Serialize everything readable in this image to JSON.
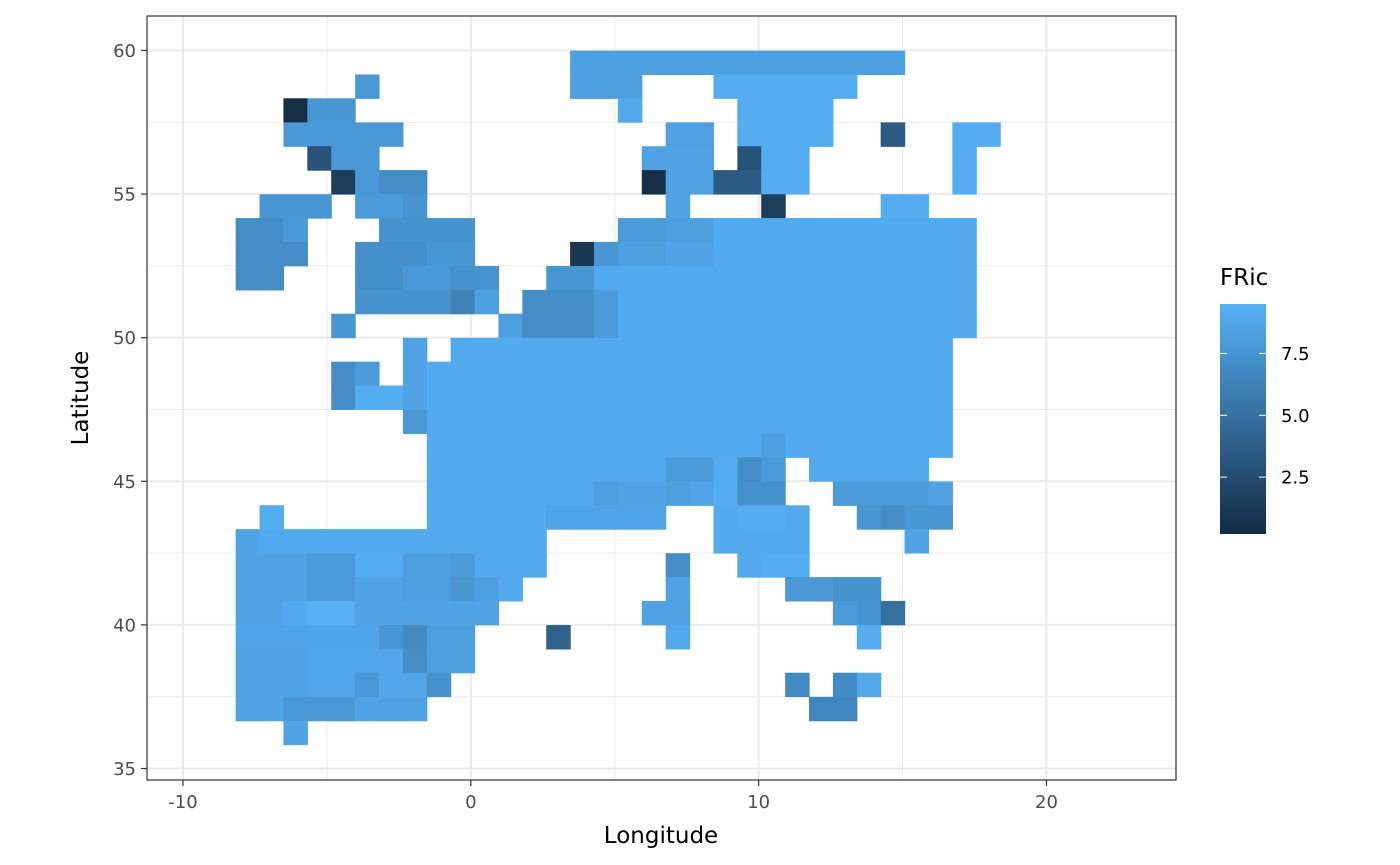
{
  "chart_data": {
    "type": "heatmap",
    "xlabel": "Longitude",
    "ylabel": "Latitude",
    "xlim": [
      -11.25,
      24.5
    ],
    "ylim": [
      34.6,
      61.2
    ],
    "xticks": [
      -10,
      0,
      10,
      20
    ],
    "yticks": [
      35,
      40,
      45,
      50,
      55,
      60
    ],
    "xtick_labels": [
      "-10",
      "0",
      "10",
      "20"
    ],
    "ytick_labels": [
      "35",
      "40",
      "45",
      "50",
      "55",
      "60"
    ],
    "grid": true,
    "legend": {
      "title": "FRic",
      "position": "right",
      "ticks": [
        2.5,
        5.0,
        7.5
      ],
      "tick_labels": [
        "2.5",
        "5.0",
        "7.5"
      ],
      "range": [
        0.2,
        9.5
      ],
      "low_color": "#132B43",
      "high_color": "#56B1F7"
    },
    "cell_size": 0.83,
    "lon0": -9.33,
    "lat0": 59.58,
    "default_value": 9.0,
    "rows": [
      {
        "lat": 59.58,
        "ranges": [
          [
            5.5,
            18.5,
            8.3
          ]
        ]
      },
      {
        "lat": 58.75,
        "ranges": [
          [
            -3.5,
            -3.5,
            7.8
          ],
          [
            5.5,
            7.5,
            8.3
          ],
          [
            11.5,
            16.5,
            9.2
          ]
        ]
      },
      {
        "lat": 57.92,
        "ranges": [
          [
            -6.5,
            -6.5,
            0.5
          ],
          [
            -5.5,
            -4.5,
            7.6
          ],
          [
            7.5,
            7.5,
            9.0
          ],
          [
            12.5,
            15.5,
            9.2
          ]
        ]
      },
      {
        "lat": 57.08,
        "ranges": [
          [
            -6.5,
            -2.5,
            7.8
          ],
          [
            9.5,
            10.5,
            8.4
          ],
          [
            12.5,
            15.5,
            9.2
          ],
          [
            18.5,
            18.5,
            3.5
          ],
          [
            21.5,
            22.5,
            9.2
          ]
        ]
      },
      {
        "lat": 56.25,
        "ranges": [
          [
            -5.5,
            -5.5,
            3.0
          ],
          [
            -4.5,
            -3.5,
            7.8
          ],
          [
            8.5,
            10.5,
            8.5
          ],
          [
            12.5,
            12.5,
            3.0
          ],
          [
            13.5,
            14.5,
            9.2
          ],
          [
            21.5,
            21.5,
            9.2
          ]
        ]
      },
      {
        "lat": 55.42,
        "ranges": [
          [
            -4.5,
            -4.5,
            1.5
          ],
          [
            -3.5,
            -3.5,
            7.8
          ],
          [
            -2.5,
            -1.5,
            7.0
          ],
          [
            8.5,
            8.5,
            0.5
          ],
          [
            9.5,
            10.5,
            8.5
          ],
          [
            11.5,
            12.5,
            3.5
          ],
          [
            13.5,
            14.5,
            9.2
          ],
          [
            21.5,
            21.5,
            9.2
          ]
        ]
      },
      {
        "lat": 54.58,
        "ranges": [
          [
            -7.5,
            -5.5,
            7.6
          ],
          [
            -3.5,
            -2.5,
            8.0
          ],
          [
            -1.5,
            -1.5,
            7.5
          ],
          [
            9.5,
            9.5,
            8.5
          ],
          [
            13.5,
            13.5,
            1.5
          ],
          [
            18.5,
            19.5,
            9.2
          ]
        ]
      },
      {
        "lat": 53.75,
        "ranges": [
          [
            -8.5,
            -7.5,
            7.0
          ],
          [
            -6.5,
            -6.5,
            7.8
          ],
          [
            -2.5,
            0.5,
            7.4
          ],
          [
            7.5,
            8.5,
            8.0
          ],
          [
            9.5,
            10.5,
            8.3
          ],
          [
            11.5,
            21.5,
            9.1
          ]
        ]
      },
      {
        "lat": 52.92,
        "ranges": [
          [
            -8.5,
            -6.5,
            7.0
          ],
          [
            -3.5,
            -1.5,
            7.2
          ],
          [
            -0.5,
            0.5,
            7.6
          ],
          [
            5.5,
            5.5,
            1.0
          ],
          [
            6.5,
            6.5,
            7.6
          ],
          [
            7.5,
            8.5,
            8.3
          ],
          [
            9.5,
            10.5,
            8.6
          ],
          [
            11.5,
            21.5,
            9.1
          ]
        ]
      },
      {
        "lat": 52.08,
        "ranges": [
          [
            -8.5,
            -7.5,
            7.0
          ],
          [
            -3.5,
            -2.5,
            7.2
          ],
          [
            -1.5,
            -0.5,
            7.8
          ],
          [
            0.5,
            0.5,
            7.4
          ],
          [
            1.5,
            1.5,
            7.5
          ],
          [
            4.5,
            5.5,
            7.6
          ],
          [
            6.5,
            21.5,
            9.1
          ]
        ]
      },
      {
        "lat": 51.25,
        "ranges": [
          [
            -3.5,
            -0.5,
            7.4
          ],
          [
            0.5,
            0.5,
            6.2
          ],
          [
            1.5,
            1.5,
            8.3
          ],
          [
            3.5,
            5.5,
            7.0
          ],
          [
            6.5,
            6.5,
            8.0
          ],
          [
            7.5,
            21.5,
            9.1
          ]
        ]
      },
      {
        "lat": 50.42,
        "ranges": [
          [
            -4.5,
            -4.5,
            7.6
          ],
          [
            2.5,
            2.5,
            8.3
          ],
          [
            3.5,
            5.5,
            7.0
          ],
          [
            6.5,
            6.5,
            8.0
          ],
          [
            7.5,
            21.5,
            9.1
          ]
        ]
      },
      {
        "lat": 49.58,
        "ranges": [
          [
            -1.5,
            -1.5,
            8.6
          ],
          [
            0.5,
            20.5,
            9.1
          ]
        ]
      },
      {
        "lat": 48.75,
        "ranges": [
          [
            -4.5,
            -4.5,
            7.0
          ],
          [
            -3.5,
            -3.5,
            8.0
          ],
          [
            -1.5,
            -1.5,
            8.6
          ],
          [
            -0.5,
            20.5,
            9.1
          ]
        ]
      },
      {
        "lat": 47.92,
        "ranges": [
          [
            -4.5,
            -4.5,
            7.0
          ],
          [
            -3.5,
            -2.5,
            9.2
          ],
          [
            -1.5,
            -1.5,
            8.6
          ],
          [
            -0.5,
            20.5,
            9.1
          ]
        ]
      },
      {
        "lat": 47.08,
        "ranges": [
          [
            -1.5,
            -1.5,
            7.8
          ],
          [
            -0.5,
            20.5,
            9.1
          ]
        ]
      },
      {
        "lat": 46.25,
        "ranges": [
          [
            -0.5,
            12.5,
            9.1
          ],
          [
            13.5,
            13.5,
            8.3
          ],
          [
            14.5,
            20.5,
            9.1
          ]
        ]
      },
      {
        "lat": 45.42,
        "ranges": [
          [
            -0.5,
            9.5,
            9.1
          ],
          [
            9.5,
            9.5,
            8.0
          ],
          [
            10.5,
            10.5,
            8.0
          ],
          [
            11.5,
            11.5,
            9.2
          ],
          [
            12.5,
            12.5,
            7.0
          ],
          [
            13.5,
            13.5,
            8.0
          ],
          [
            15.5,
            19.5,
            9.1
          ]
        ]
      },
      {
        "lat": 44.58,
        "ranges": [
          [
            -0.5,
            5.5,
            9.1
          ],
          [
            6.5,
            6.5,
            8.3
          ],
          [
            7.5,
            8.5,
            8.6
          ],
          [
            9.5,
            9.5,
            8.3
          ],
          [
            10.5,
            10.5,
            8.7
          ],
          [
            11.5,
            11.5,
            9.2
          ],
          [
            12.5,
            13.5,
            7.3
          ],
          [
            16.5,
            19.5,
            8.0
          ],
          [
            20.5,
            20.5,
            8.6
          ]
        ]
      },
      {
        "lat": 43.75,
        "ranges": [
          [
            -7.5,
            -7.5,
            9.2
          ],
          [
            -0.5,
            3.5,
            9.1
          ],
          [
            4.5,
            8.5,
            8.7
          ],
          [
            11.5,
            11.5,
            9.0
          ],
          [
            12.5,
            13.5,
            9.2
          ],
          [
            14.5,
            14.5,
            9.0
          ],
          [
            17.5,
            17.5,
            7.6
          ],
          [
            18.5,
            18.5,
            7.0
          ],
          [
            19.5,
            20.5,
            7.6
          ]
        ]
      },
      {
        "lat": 42.92,
        "ranges": [
          [
            -8.5,
            -8.5,
            8.6
          ],
          [
            -7.5,
            3.5,
            9.1
          ],
          [
            11.5,
            14.5,
            9.0
          ],
          [
            19.5,
            19.5,
            8.6
          ]
        ]
      },
      {
        "lat": 42.08,
        "ranges": [
          [
            -8.5,
            -6.5,
            8.6
          ],
          [
            -5.5,
            -4.5,
            8.0
          ],
          [
            -3.5,
            -2.5,
            9.2
          ],
          [
            -1.5,
            -0.5,
            8.3
          ],
          [
            0.5,
            0.5,
            8.0
          ],
          [
            1.5,
            3.5,
            9.1
          ],
          [
            9.5,
            9.5,
            7.0
          ],
          [
            12.5,
            12.5,
            9.0
          ],
          [
            13.5,
            14.5,
            9.2
          ]
        ]
      },
      {
        "lat": 41.25,
        "ranges": [
          [
            -8.5,
            -6.5,
            8.6
          ],
          [
            -5.5,
            -4.5,
            8.0
          ],
          [
            -3.5,
            -2.5,
            8.6
          ],
          [
            -1.5,
            -0.5,
            8.3
          ],
          [
            0.5,
            0.5,
            7.6
          ],
          [
            1.5,
            1.5,
            8.3
          ],
          [
            2.5,
            2.5,
            9.1
          ],
          [
            9.5,
            9.5,
            8.6
          ],
          [
            14.5,
            15.5,
            7.8
          ],
          [
            16.5,
            17.5,
            7.4
          ]
        ]
      },
      {
        "lat": 40.42,
        "ranges": [
          [
            -8.5,
            -7.5,
            8.6
          ],
          [
            -6.5,
            -6.5,
            9.1
          ],
          [
            -5.5,
            -4.5,
            9.4
          ],
          [
            -3.5,
            1.5,
            8.6
          ],
          [
            8.5,
            8.5,
            8.6
          ],
          [
            9.5,
            9.5,
            8.4
          ],
          [
            16.5,
            16.5,
            8.0
          ],
          [
            17.5,
            17.5,
            7.5
          ],
          [
            18.5,
            18.5,
            5.0
          ]
        ]
      },
      {
        "lat": 39.58,
        "ranges": [
          [
            -8.5,
            -3.5,
            8.7
          ],
          [
            -2.5,
            -2.5,
            7.6
          ],
          [
            -1.5,
            -1.5,
            6.8
          ],
          [
            -0.5,
            0.5,
            8.3
          ],
          [
            4.5,
            4.5,
            4.0
          ],
          [
            9.5,
            9.5,
            9.0
          ],
          [
            17.5,
            17.5,
            9.2
          ]
        ]
      },
      {
        "lat": 38.75,
        "ranges": [
          [
            -8.5,
            -6.5,
            8.6
          ],
          [
            -5.5,
            -2.5,
            8.8
          ],
          [
            -1.5,
            -1.5,
            7.0
          ],
          [
            -0.5,
            0.5,
            8.3
          ]
        ]
      },
      {
        "lat": 37.92,
        "ranges": [
          [
            -8.5,
            -6.5,
            8.6
          ],
          [
            -5.5,
            -4.5,
            8.8
          ],
          [
            -3.5,
            -3.5,
            7.8
          ],
          [
            -2.5,
            -1.5,
            8.8
          ],
          [
            -0.5,
            -0.5,
            7.4
          ],
          [
            14.5,
            14.5,
            6.8
          ],
          [
            16.5,
            16.5,
            6.8
          ],
          [
            17.5,
            17.5,
            9.0
          ]
        ]
      },
      {
        "lat": 37.08,
        "ranges": [
          [
            -8.5,
            -7.5,
            8.6
          ],
          [
            -6.5,
            -4.5,
            7.8
          ],
          [
            -3.5,
            -1.5,
            8.6
          ],
          [
            15.5,
            16.5,
            6.6
          ]
        ]
      },
      {
        "lat": 36.25,
        "ranges": [
          [
            -6.5,
            -6.5,
            8.6
          ]
        ]
      }
    ]
  }
}
